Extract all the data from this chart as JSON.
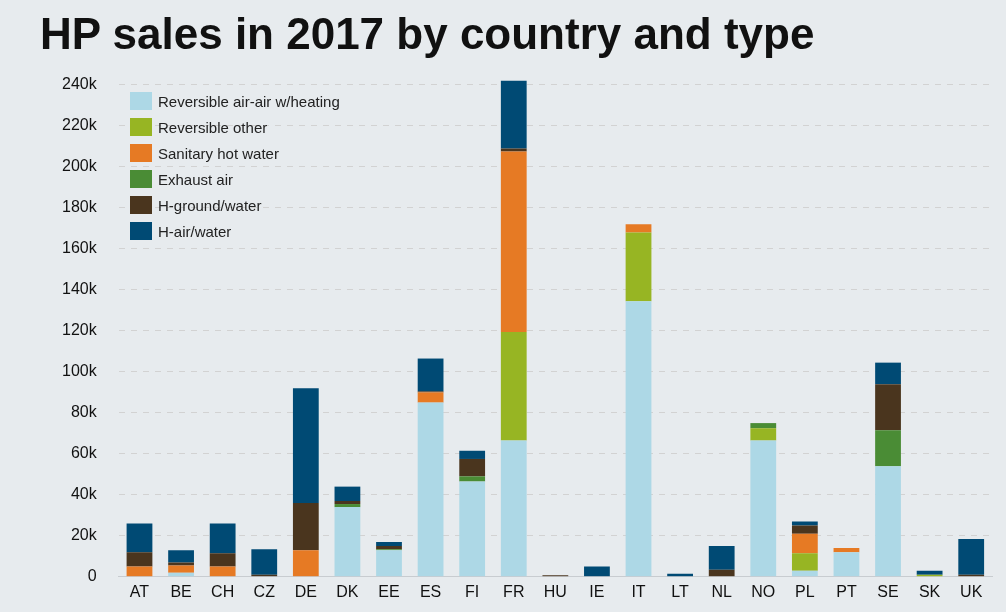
{
  "chart_data": {
    "type": "bar",
    "title": "HP sales in 2017 by country and type",
    "categories": [
      "AT",
      "BE",
      "CH",
      "CZ",
      "DE",
      "DK",
      "EE",
      "ES",
      "FI",
      "FR",
      "HU",
      "IE",
      "IT",
      "LT",
      "NL",
      "NO",
      "PL",
      "PT",
      "SE",
      "SK",
      "UK"
    ],
    "stacked": true,
    "series": [
      {
        "name": "Reversible air-air w/heating",
        "color": "#add8e6",
        "values": [
          0,
          2000,
          0,
          0,
          0,
          34000,
          13000,
          85000,
          46500,
          66500,
          0,
          0,
          134500,
          0,
          0,
          66500,
          3000,
          12000,
          54000,
          0,
          0
        ]
      },
      {
        "name": "Reversible other",
        "color": "#97b523",
        "values": [
          0,
          0,
          0,
          0,
          0,
          0,
          0,
          0,
          0,
          53000,
          0,
          0,
          33500,
          0,
          0,
          6000,
          8500,
          0,
          0,
          1000,
          0
        ]
      },
      {
        "name": "Sanitary hot water",
        "color": "#e67a24",
        "values": [
          5000,
          3500,
          5000,
          0,
          13000,
          0,
          0,
          5000,
          0,
          88000,
          0,
          0,
          4000,
          0,
          0,
          0,
          9500,
          2000,
          0,
          0,
          0
        ]
      },
      {
        "name": "Exhaust air",
        "color": "#4a8c35",
        "values": [
          0,
          0,
          0,
          0,
          0,
          1500,
          500,
          0,
          2500,
          0,
          0,
          0,
          0,
          0,
          0,
          2500,
          0,
          0,
          17500,
          0,
          0
        ]
      },
      {
        "name": "H-ground/water",
        "color": "#4a351e",
        "values": [
          7000,
          1500,
          6500,
          1000,
          23000,
          1500,
          1500,
          500,
          8500,
          1500,
          800,
          0,
          0,
          0,
          3500,
          0,
          4000,
          0,
          22500,
          0,
          1000
        ]
      },
      {
        "name": "H-air/water",
        "color": "#004a74",
        "values": [
          14000,
          6000,
          14500,
          12500,
          56000,
          7000,
          2000,
          16000,
          4000,
          33000,
          0,
          5000,
          0,
          1500,
          11500,
          0,
          2000,
          0,
          10500,
          2000,
          17500
        ]
      }
    ],
    "ylim": [
      0,
      243000
    ],
    "yticks": [
      {
        "value": 0,
        "label": "0"
      },
      {
        "value": 20000,
        "label": "20k"
      },
      {
        "value": 40000,
        "label": "40k"
      },
      {
        "value": 60000,
        "label": "60k"
      },
      {
        "value": 80000,
        "label": "80k"
      },
      {
        "value": 100000,
        "label": "100k"
      },
      {
        "value": 120000,
        "label": "120k"
      },
      {
        "value": 140000,
        "label": "140k"
      },
      {
        "value": 160000,
        "label": "160k"
      },
      {
        "value": 180000,
        "label": "180k"
      },
      {
        "value": 200000,
        "label": "200k"
      },
      {
        "value": 220000,
        "label": "220k"
      },
      {
        "value": 240000,
        "label": "240k"
      }
    ],
    "grid": "y",
    "legend": "top left"
  }
}
